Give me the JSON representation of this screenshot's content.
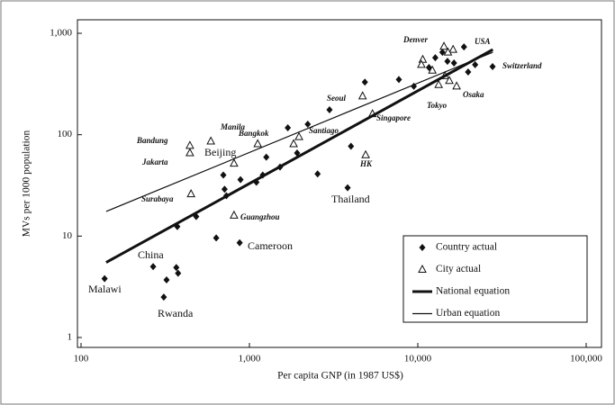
{
  "chart_data": {
    "type": "scatter",
    "x_label": "Per capita GNP (in 1987 US$)",
    "y_label": "MVs per 1000 population",
    "log_x": true,
    "log_y": true,
    "xlim": [
      100,
      100000
    ],
    "xticks": [
      100,
      {
        "value": 1000,
        "label": "1,000"
      },
      {
        "value": 10000,
        "label": "10,000"
      },
      {
        "value": 100000,
        "label": "100,000"
      }
    ],
    "ylim": [
      1,
      1000
    ],
    "yticks": [
      1,
      10,
      100,
      {
        "value": 1000,
        "label": "1,000"
      }
    ],
    "legend": "lower right",
    "series": [
      {
        "name": "Country actual",
        "color": "#111111",
        "marker": "diamond",
        "x": [
          138,
          268,
          322,
          368,
          377,
          310,
          373,
          483,
          635,
          700,
          712,
          730,
          885,
          875,
          1100,
          1200,
          1260,
          1520,
          1690,
          1920,
          2220,
          2540,
          2990,
          3830,
          4010,
          4850,
          7720,
          9470,
          11650,
          12700,
          14000,
          15000,
          16400,
          18800,
          19900,
          21900,
          27800
        ],
        "values": [
          3.8,
          5.0,
          3.7,
          4.9,
          4.3,
          2.5,
          12.4,
          15.6,
          9.6,
          40,
          29,
          25,
          36,
          8.6,
          34,
          40,
          60,
          48,
          117,
          66,
          127,
          41,
          176,
          30,
          77,
          330,
          350,
          300,
          460,
          575,
          650,
          530,
          510,
          735,
          415,
          490,
          470
        ]
      },
      {
        "name": "City actual",
        "color": "#111111",
        "marker": "triangle",
        "x": [
          443,
          443,
          590,
          810,
          1120,
          1830,
          1970,
          810,
          450,
          4900,
          4700,
          5380,
          10700,
          10500,
          14300,
          12200,
          13300,
          14500,
          15400,
          16200,
          17000,
          15100
        ],
        "values": [
          78,
          66,
          86,
          52,
          81,
          81,
          95,
          16,
          26,
          63,
          240,
          160,
          550,
          490,
          740,
          430,
          310,
          380,
          340,
          690,
          300,
          650
        ]
      },
      {
        "name": "National equation",
        "color": "#111111",
        "marker": "line",
        "x": [
          141,
          27900
        ],
        "values": [
          5.5,
          692
        ]
      },
      {
        "name": "Urban equation",
        "color": "#111111",
        "marker": "line",
        "x": [
          141,
          27900
        ],
        "values": [
          17.5,
          650
        ]
      }
    ],
    "annotations": [
      "Malawi",
      "China",
      "Rwanda",
      "Cameroon",
      "Thailand",
      "HK",
      "Singapore",
      "Seoul",
      "Santiago",
      "Bangkok",
      "Manila",
      "Bandung",
      "Jakarta",
      "Beijing",
      "Surabaya",
      "Guangzhou",
      "Denver",
      "USA",
      "Switzerland",
      "Tokyo",
      "Osaka"
    ]
  }
}
